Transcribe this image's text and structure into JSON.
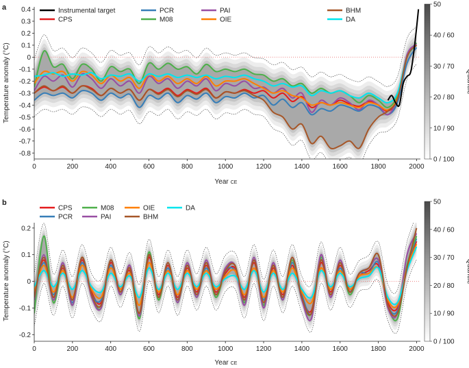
{
  "figure": {
    "colorbar": {
      "label": "Quantile",
      "ticks": [
        "50",
        "40 / 60",
        "30 / 70",
        "20 / 80",
        "10 / 90",
        "0 / 100"
      ]
    }
  },
  "chart_data": [
    {
      "panel": "a",
      "type": "line",
      "xlabel": "Year",
      "xlabel_suffix": "CE",
      "ylabel": "Temperature anomaly (°C)",
      "xlim": [
        0,
        2020
      ],
      "ylim": [
        -0.85,
        0.42
      ],
      "xticks": [
        0,
        200,
        400,
        600,
        800,
        1000,
        1200,
        1400,
        1600,
        1800,
        2000
      ],
      "yticks": [
        0.4,
        0.3,
        0.2,
        0.1,
        0,
        -0.1,
        -0.2,
        -0.3,
        -0.4,
        -0.5,
        -0.6,
        -0.7,
        -0.8
      ],
      "reference_line_y": 0,
      "legend": [
        "Instrumental target",
        "PCR",
        "PAI",
        "BHM",
        "CPS",
        "M08",
        "OIE",
        "DA"
      ],
      "x": [
        0,
        50,
        100,
        150,
        200,
        250,
        300,
        350,
        400,
        450,
        500,
        550,
        600,
        650,
        700,
        750,
        800,
        850,
        900,
        950,
        1000,
        1050,
        1100,
        1150,
        1200,
        1250,
        1300,
        1350,
        1400,
        1450,
        1500,
        1550,
        1600,
        1650,
        1700,
        1750,
        1800,
        1850,
        1900,
        1950,
        2000
      ],
      "series": [
        {
          "name": "CPS",
          "color": "#e41a1c",
          "values": [
            -0.3,
            -0.25,
            -0.28,
            -0.25,
            -0.3,
            -0.24,
            -0.26,
            -0.32,
            -0.26,
            -0.3,
            -0.27,
            -0.36,
            -0.27,
            -0.3,
            -0.26,
            -0.32,
            -0.27,
            -0.3,
            -0.26,
            -0.34,
            -0.29,
            -0.3,
            -0.27,
            -0.3,
            -0.28,
            -0.34,
            -0.3,
            -0.37,
            -0.33,
            -0.42,
            -0.38,
            -0.4,
            -0.36,
            -0.39,
            -0.41,
            -0.37,
            -0.4,
            -0.45,
            -0.35,
            0.0,
            0.1
          ]
        },
        {
          "name": "PCR",
          "color": "#377eb8",
          "values": [
            -0.36,
            -0.3,
            -0.32,
            -0.3,
            -0.34,
            -0.28,
            -0.3,
            -0.36,
            -0.3,
            -0.34,
            -0.31,
            -0.42,
            -0.32,
            -0.35,
            -0.3,
            -0.38,
            -0.32,
            -0.35,
            -0.3,
            -0.38,
            -0.33,
            -0.34,
            -0.3,
            -0.34,
            -0.32,
            -0.4,
            -0.35,
            -0.42,
            -0.38,
            -0.48,
            -0.43,
            -0.45,
            -0.4,
            -0.42,
            -0.45,
            -0.4,
            -0.42,
            -0.48,
            -0.38,
            -0.05,
            0.08
          ]
        },
        {
          "name": "M08",
          "color": "#4daf4a",
          "values": [
            -0.25,
            0.05,
            -0.08,
            -0.06,
            -0.18,
            -0.06,
            -0.1,
            -0.2,
            -0.08,
            -0.12,
            -0.1,
            -0.22,
            -0.05,
            -0.1,
            -0.05,
            -0.1,
            -0.08,
            -0.14,
            -0.06,
            -0.12,
            -0.1,
            -0.12,
            -0.1,
            -0.14,
            -0.15,
            -0.2,
            -0.18,
            -0.24,
            -0.22,
            -0.3,
            -0.26,
            -0.3,
            -0.28,
            -0.32,
            -0.38,
            -0.32,
            -0.36,
            -0.42,
            -0.32,
            0.0,
            0.12
          ]
        },
        {
          "name": "PAI",
          "color": "#984ea3",
          "values": [
            -0.28,
            -0.16,
            -0.2,
            -0.15,
            -0.25,
            -0.14,
            -0.18,
            -0.26,
            -0.18,
            -0.24,
            -0.2,
            -0.3,
            -0.16,
            -0.22,
            -0.18,
            -0.26,
            -0.2,
            -0.24,
            -0.18,
            -0.28,
            -0.22,
            -0.24,
            -0.2,
            -0.26,
            -0.25,
            -0.3,
            -0.26,
            -0.34,
            -0.3,
            -0.46,
            -0.36,
            -0.4,
            -0.34,
            -0.38,
            -0.44,
            -0.36,
            -0.4,
            -0.48,
            -0.34,
            0.02,
            0.11
          ]
        },
        {
          "name": "OIE",
          "color": "#ff7f00",
          "values": [
            -0.22,
            -0.12,
            -0.14,
            -0.12,
            -0.2,
            -0.12,
            -0.15,
            -0.22,
            -0.15,
            -0.2,
            -0.17,
            -0.26,
            -0.14,
            -0.2,
            -0.16,
            -0.22,
            -0.18,
            -0.22,
            -0.16,
            -0.24,
            -0.2,
            -0.2,
            -0.18,
            -0.22,
            -0.26,
            -0.3,
            -0.28,
            -0.32,
            -0.34,
            -0.4,
            -0.38,
            -0.4,
            -0.38,
            -0.4,
            -0.42,
            -0.38,
            -0.4,
            -0.44,
            -0.34,
            0.0,
            0.1
          ]
        },
        {
          "name": "DA",
          "color": "#00e5ee",
          "values": [
            -0.16,
            -0.15,
            -0.13,
            -0.16,
            -0.14,
            -0.15,
            -0.13,
            -0.18,
            -0.15,
            -0.16,
            -0.14,
            -0.2,
            -0.14,
            -0.16,
            -0.14,
            -0.17,
            -0.15,
            -0.17,
            -0.15,
            -0.18,
            -0.16,
            -0.17,
            -0.15,
            -0.18,
            -0.2,
            -0.24,
            -0.22,
            -0.25,
            -0.24,
            -0.32,
            -0.28,
            -0.3,
            -0.28,
            -0.32,
            -0.34,
            -0.3,
            -0.34,
            -0.38,
            -0.3,
            0.0,
            0.1
          ]
        },
        {
          "name": "BHM",
          "color": "#a65628",
          "values": [
            -0.3,
            -0.24,
            -0.28,
            -0.24,
            -0.3,
            -0.24,
            -0.27,
            -0.32,
            -0.26,
            -0.3,
            -0.27,
            -0.36,
            -0.27,
            -0.31,
            -0.27,
            -0.33,
            -0.28,
            -0.31,
            -0.27,
            -0.34,
            -0.29,
            -0.3,
            -0.28,
            -0.32,
            -0.36,
            -0.46,
            -0.5,
            -0.6,
            -0.56,
            -0.72,
            -0.66,
            -0.76,
            -0.74,
            -0.7,
            -0.76,
            -0.6,
            -0.5,
            -0.45,
            -0.35,
            0.0,
            0.1
          ]
        }
      ],
      "instrumental_target": {
        "name": "Instrumental target",
        "color": "#000000",
        "x": [
          1850,
          1870,
          1890,
          1910,
          1930,
          1950,
          1970,
          1990,
          2010
        ],
        "values": [
          -0.36,
          -0.32,
          -0.38,
          -0.4,
          -0.22,
          -0.16,
          -0.12,
          0.1,
          0.4
        ]
      }
    },
    {
      "panel": "b",
      "type": "line",
      "xlabel": "Year",
      "xlabel_suffix": "CE",
      "ylabel": "Temperature anomaly (°C)",
      "xlim": [
        0,
        2020
      ],
      "ylim": [
        -0.225,
        0.22
      ],
      "xticks": [
        0,
        200,
        400,
        600,
        800,
        1000,
        1200,
        1400,
        1600,
        1800,
        2000
      ],
      "yticks": [
        0.2,
        0.1,
        0,
        -0.1,
        -0.2
      ],
      "reference_line_y": 0,
      "legend": [
        "CPS",
        "M08",
        "OIE",
        "DA",
        "PCR",
        "PAI",
        "BHM"
      ],
      "x": [
        0,
        50,
        100,
        150,
        200,
        250,
        300,
        350,
        400,
        450,
        500,
        550,
        600,
        650,
        700,
        750,
        800,
        850,
        900,
        950,
        1000,
        1050,
        1100,
        1150,
        1200,
        1250,
        1300,
        1350,
        1400,
        1450,
        1500,
        1550,
        1600,
        1650,
        1700,
        1750,
        1800,
        1850,
        1900,
        1950,
        2000
      ],
      "series": [
        {
          "name": "CPS",
          "color": "#e41a1c",
          "values": [
            -0.05,
            0.08,
            -0.06,
            0.05,
            -0.07,
            0.08,
            -0.04,
            -0.08,
            0.07,
            -0.03,
            0.04,
            -0.12,
            0.09,
            -0.05,
            0.06,
            -0.06,
            0.05,
            -0.04,
            0.06,
            -0.04,
            0.03,
            0.05,
            -0.06,
            0.07,
            -0.08,
            0.05,
            -0.05,
            0.06,
            -0.06,
            -0.11,
            0.07,
            -0.04,
            0.06,
            -0.03,
            0.02,
            0.04,
            0.06,
            -0.08,
            -0.1,
            0.05,
            0.15
          ]
        },
        {
          "name": "PCR",
          "color": "#377eb8",
          "values": [
            -0.06,
            0.07,
            -0.05,
            0.06,
            -0.08,
            0.07,
            -0.05,
            -0.07,
            0.06,
            -0.04,
            0.05,
            -0.13,
            0.1,
            -0.06,
            0.05,
            -0.07,
            0.06,
            -0.05,
            0.05,
            -0.05,
            0.04,
            0.04,
            -0.07,
            0.08,
            -0.07,
            0.06,
            -0.06,
            0.07,
            -0.05,
            -0.12,
            0.08,
            -0.05,
            0.05,
            -0.04,
            0.03,
            0.03,
            0.07,
            -0.09,
            -0.11,
            0.06,
            0.16
          ]
        },
        {
          "name": "M08",
          "color": "#4daf4a",
          "values": [
            -0.12,
            0.17,
            -0.08,
            0.06,
            -0.09,
            0.09,
            -0.05,
            -0.1,
            0.08,
            -0.05,
            0.05,
            -0.14,
            0.11,
            -0.07,
            0.07,
            -0.08,
            0.06,
            -0.06,
            0.07,
            -0.06,
            0.04,
            0.06,
            -0.08,
            0.08,
            -0.09,
            0.06,
            -0.07,
            0.08,
            -0.07,
            -0.12,
            0.09,
            -0.05,
            0.07,
            -0.05,
            0.03,
            0.05,
            0.08,
            -0.09,
            -0.14,
            0.06,
            0.17
          ]
        },
        {
          "name": "PAI",
          "color": "#984ea3",
          "values": [
            -0.07,
            0.1,
            -0.07,
            0.07,
            -0.09,
            0.09,
            -0.06,
            -0.1,
            0.08,
            -0.05,
            0.06,
            -0.13,
            0.1,
            -0.06,
            0.07,
            -0.08,
            0.07,
            -0.06,
            0.08,
            -0.05,
            0.05,
            0.06,
            -0.09,
            0.09,
            -0.1,
            0.07,
            -0.07,
            0.09,
            -0.07,
            -0.14,
            0.1,
            -0.06,
            0.08,
            -0.04,
            0.03,
            0.05,
            0.08,
            -0.1,
            -0.12,
            0.1,
            0.18
          ]
        },
        {
          "name": "OIE",
          "color": "#ff7f00",
          "values": [
            -0.04,
            0.06,
            -0.04,
            0.04,
            -0.06,
            0.06,
            -0.03,
            -0.06,
            0.05,
            -0.03,
            0.03,
            -0.09,
            0.07,
            -0.04,
            0.04,
            -0.05,
            0.04,
            -0.03,
            0.04,
            -0.03,
            0.02,
            0.04,
            -0.05,
            0.05,
            -0.06,
            0.04,
            -0.04,
            0.05,
            -0.04,
            -0.08,
            0.05,
            -0.03,
            0.04,
            -0.03,
            0.02,
            0.03,
            0.05,
            -0.07,
            -0.09,
            0.05,
            0.14
          ]
        },
        {
          "name": "DA",
          "color": "#00e5ee",
          "values": [
            -0.02,
            0.04,
            -0.02,
            0.03,
            -0.03,
            0.04,
            -0.02,
            -0.04,
            0.03,
            -0.02,
            0.02,
            -0.06,
            0.05,
            -0.03,
            0.03,
            -0.03,
            0.03,
            -0.02,
            0.03,
            -0.02,
            0.01,
            0.02,
            -0.03,
            0.04,
            -0.04,
            0.03,
            -0.03,
            0.03,
            -0.03,
            -0.06,
            0.04,
            -0.02,
            0.03,
            -0.02,
            0.01,
            0.02,
            0.05,
            -0.06,
            -0.08,
            0.04,
            0.13
          ]
        },
        {
          "name": "BHM",
          "color": "#a65628",
          "values": [
            -0.06,
            0.09,
            -0.06,
            0.06,
            -0.07,
            0.09,
            -0.05,
            -0.09,
            0.08,
            -0.04,
            0.05,
            -0.12,
            0.1,
            -0.06,
            0.07,
            -0.07,
            0.06,
            -0.05,
            0.07,
            -0.05,
            0.04,
            0.06,
            -0.07,
            0.08,
            -0.08,
            0.06,
            -0.06,
            0.09,
            -0.06,
            -0.12,
            0.08,
            -0.05,
            0.07,
            -0.04,
            0.03,
            0.05,
            0.1,
            -0.09,
            -0.12,
            0.05,
            0.2
          ]
        }
      ]
    }
  ]
}
